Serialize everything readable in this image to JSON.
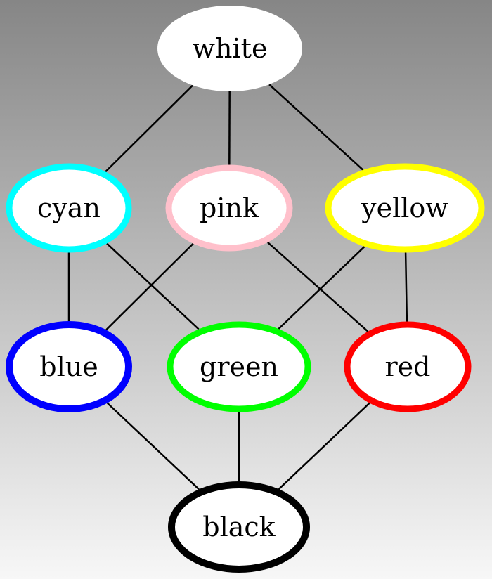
{
  "nodes": [
    {
      "id": "white",
      "label": "white",
      "border": "#ffffff"
    },
    {
      "id": "cyan",
      "label": "cyan",
      "border": "#00ffff"
    },
    {
      "id": "pink",
      "label": "pink",
      "border": "#ffc0cb"
    },
    {
      "id": "yellow",
      "label": "yellow",
      "border": "#ffff00"
    },
    {
      "id": "blue",
      "label": "blue",
      "border": "#0000ff"
    },
    {
      "id": "green",
      "label": "green",
      "border": "#00ff00"
    },
    {
      "id": "red",
      "label": "red",
      "border": "#ff0000"
    },
    {
      "id": "black",
      "label": "black",
      "border": "#000000"
    }
  ],
  "edges": [
    {
      "from": "white",
      "to": "cyan"
    },
    {
      "from": "white",
      "to": "pink"
    },
    {
      "from": "white",
      "to": "yellow"
    },
    {
      "from": "cyan",
      "to": "blue"
    },
    {
      "from": "cyan",
      "to": "green"
    },
    {
      "from": "pink",
      "to": "blue"
    },
    {
      "from": "pink",
      "to": "red"
    },
    {
      "from": "yellow",
      "to": "green"
    },
    {
      "from": "yellow",
      "to": "red"
    },
    {
      "from": "blue",
      "to": "black"
    },
    {
      "from": "green",
      "to": "black"
    },
    {
      "from": "red",
      "to": "black"
    }
  ]
}
